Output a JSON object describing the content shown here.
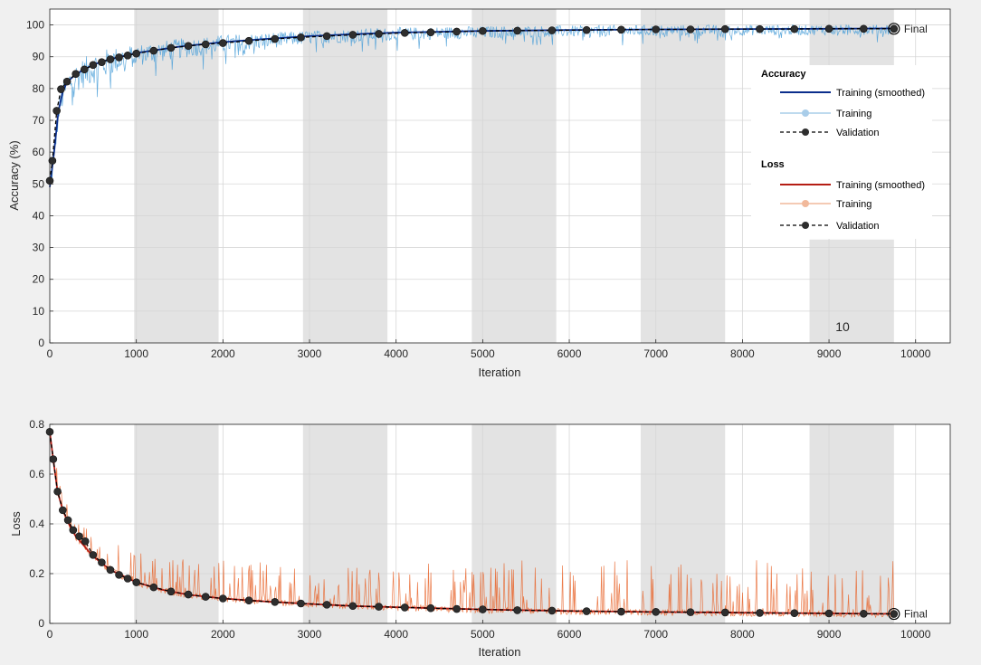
{
  "chart_data": [
    {
      "id": "accuracy",
      "type": "line",
      "xlabel": "Iteration",
      "ylabel": "Accuracy (%)",
      "xlim": [
        0,
        10400
      ],
      "ylim": [
        0,
        105
      ],
      "xticks": [
        0,
        1000,
        2000,
        3000,
        4000,
        5000,
        6000,
        7000,
        8000,
        9000,
        10000
      ],
      "yticks": [
        0,
        10,
        20,
        30,
        40,
        50,
        60,
        70,
        80,
        90,
        100
      ],
      "grid": true,
      "epoch_bands": [
        [
          975,
          1950
        ],
        [
          2925,
          3900
        ],
        [
          4875,
          5850
        ],
        [
          6825,
          7800
        ],
        [
          8775,
          9750
        ]
      ],
      "epoch_label": "10",
      "final_label": "Final",
      "final_point": [
        9750,
        98.8
      ],
      "smoothed_curve": [
        [
          0,
          49
        ],
        [
          50,
          60
        ],
        [
          100,
          73
        ],
        [
          150,
          79
        ],
        [
          200,
          82
        ],
        [
          300,
          84.5
        ],
        [
          400,
          86
        ],
        [
          500,
          87.5
        ],
        [
          700,
          89.3
        ],
        [
          1000,
          91.2
        ],
        [
          1500,
          93.2
        ],
        [
          2000,
          94.6
        ],
        [
          2500,
          95.6
        ],
        [
          3000,
          96.5
        ],
        [
          3500,
          97.1
        ],
        [
          4000,
          97.6
        ],
        [
          5000,
          98.1
        ],
        [
          6000,
          98.4
        ],
        [
          7000,
          98.6
        ],
        [
          8000,
          98.7
        ],
        [
          9000,
          98.8
        ],
        [
          9750,
          98.9
        ]
      ],
      "training_noise_envelope": [
        [
          0,
          4
        ],
        [
          500,
          5
        ],
        [
          1000,
          3.5
        ],
        [
          3000,
          2.2
        ],
        [
          6000,
          1.8
        ],
        [
          9750,
          1.6
        ]
      ],
      "validation_points": [
        [
          0,
          51
        ],
        [
          30,
          57.3
        ],
        [
          80,
          73
        ],
        [
          130,
          79.8
        ],
        [
          200,
          82.2
        ],
        [
          300,
          84.6
        ],
        [
          400,
          86
        ],
        [
          500,
          87.4
        ],
        [
          600,
          88.3
        ],
        [
          700,
          89.2
        ],
        [
          800,
          89.8
        ],
        [
          900,
          90.4
        ],
        [
          1000,
          91
        ],
        [
          1200,
          91.9
        ],
        [
          1400,
          92.8
        ],
        [
          1600,
          93.4
        ],
        [
          1800,
          93.9
        ],
        [
          2000,
          94.3
        ],
        [
          2300,
          95
        ],
        [
          2600,
          95.6
        ],
        [
          2900,
          96.1
        ],
        [
          3200,
          96.5
        ],
        [
          3500,
          96.9
        ],
        [
          3800,
          97.2
        ],
        [
          4100,
          97.5
        ],
        [
          4400,
          97.7
        ],
        [
          4700,
          97.9
        ],
        [
          5000,
          98.1
        ],
        [
          5400,
          98.2
        ],
        [
          5800,
          98.3
        ],
        [
          6200,
          98.4
        ],
        [
          6600,
          98.5
        ],
        [
          7000,
          98.6
        ],
        [
          7400,
          98.6
        ],
        [
          7800,
          98.7
        ],
        [
          8200,
          98.7
        ],
        [
          8600,
          98.7
        ],
        [
          9000,
          98.8
        ],
        [
          9400,
          98.8
        ],
        [
          9750,
          98.8
        ]
      ]
    },
    {
      "id": "loss",
      "type": "line",
      "xlabel": "Iteration",
      "ylabel": "Loss",
      "xlim": [
        0,
        10400
      ],
      "ylim": [
        0,
        0.8
      ],
      "xticks": [
        0,
        1000,
        2000,
        3000,
        4000,
        5000,
        6000,
        7000,
        8000,
        9000,
        10000
      ],
      "yticks": [
        0,
        0.2,
        0.4,
        0.6,
        0.8
      ],
      "ytick_labels": [
        "0",
        "0.2",
        "0.4",
        "0.6",
        "0.8"
      ],
      "grid": true,
      "epoch_bands": [
        [
          975,
          1950
        ],
        [
          2925,
          3900
        ],
        [
          4875,
          5850
        ],
        [
          6825,
          7800
        ],
        [
          8775,
          9750
        ]
      ],
      "final_label": "Final",
      "final_point": [
        9750,
        0.038
      ],
      "smoothed_curve": [
        [
          0,
          0.77
        ],
        [
          40,
          0.66
        ],
        [
          90,
          0.53
        ],
        [
          150,
          0.455
        ],
        [
          220,
          0.4
        ],
        [
          300,
          0.35
        ],
        [
          400,
          0.31
        ],
        [
          500,
          0.27
        ],
        [
          700,
          0.215
        ],
        [
          1000,
          0.165
        ],
        [
          1300,
          0.135
        ],
        [
          1600,
          0.115
        ],
        [
          2000,
          0.1
        ],
        [
          2500,
          0.088
        ],
        [
          3000,
          0.078
        ],
        [
          3500,
          0.07
        ],
        [
          4000,
          0.065
        ],
        [
          5000,
          0.056
        ],
        [
          6000,
          0.05
        ],
        [
          7000,
          0.046
        ],
        [
          8000,
          0.043
        ],
        [
          9000,
          0.04
        ],
        [
          9750,
          0.038
        ]
      ],
      "training_spike_envelope": [
        [
          0,
          0.05
        ],
        [
          500,
          0.09
        ],
        [
          1000,
          0.12
        ],
        [
          2000,
          0.14
        ],
        [
          3000,
          0.15
        ],
        [
          5000,
          0.18
        ],
        [
          7000,
          0.2
        ],
        [
          9750,
          0.2
        ]
      ],
      "validation_points": [
        [
          0,
          0.77
        ],
        [
          40,
          0.66
        ],
        [
          90,
          0.53
        ],
        [
          150,
          0.455
        ],
        [
          210,
          0.415
        ],
        [
          270,
          0.375
        ],
        [
          340,
          0.35
        ],
        [
          410,
          0.33
        ],
        [
          500,
          0.275
        ],
        [
          600,
          0.245
        ],
        [
          700,
          0.215
        ],
        [
          800,
          0.195
        ],
        [
          900,
          0.18
        ],
        [
          1000,
          0.165
        ],
        [
          1200,
          0.145
        ],
        [
          1400,
          0.128
        ],
        [
          1600,
          0.116
        ],
        [
          1800,
          0.107
        ],
        [
          2000,
          0.1
        ],
        [
          2300,
          0.092
        ],
        [
          2600,
          0.086
        ],
        [
          2900,
          0.08
        ],
        [
          3200,
          0.075
        ],
        [
          3500,
          0.07
        ],
        [
          3800,
          0.067
        ],
        [
          4100,
          0.064
        ],
        [
          4400,
          0.061
        ],
        [
          4700,
          0.058
        ],
        [
          5000,
          0.056
        ],
        [
          5400,
          0.053
        ],
        [
          5800,
          0.051
        ],
        [
          6200,
          0.049
        ],
        [
          6600,
          0.047
        ],
        [
          7000,
          0.046
        ],
        [
          7400,
          0.045
        ],
        [
          7800,
          0.044
        ],
        [
          8200,
          0.042
        ],
        [
          8600,
          0.041
        ],
        [
          9000,
          0.04
        ],
        [
          9400,
          0.039
        ],
        [
          9750,
          0.038
        ]
      ]
    }
  ],
  "legend": {
    "placement": "top-right",
    "accuracy_title": "Accuracy",
    "loss_title": "Loss",
    "items": {
      "acc_smoothed": "Training (smoothed)",
      "acc_training": "Training",
      "acc_validation": "Validation",
      "loss_smoothed": "Training (smoothed)",
      "loss_training": "Training",
      "loss_validation": "Validation"
    }
  },
  "colors": {
    "acc_smoothed": "#0b2e8c",
    "acc_training": "#4a9fd8",
    "acc_training_marker": "#a9cde9",
    "loss_smoothed": "#b51d14",
    "loss_training": "#e8642a",
    "loss_training_marker": "#f1b99b",
    "validation": "#2e2e2e",
    "band": "#e3e3e3",
    "grid": "#d6d6d6",
    "axes_bg": "#ffffff",
    "figure_bg": "#f0f0f0"
  }
}
